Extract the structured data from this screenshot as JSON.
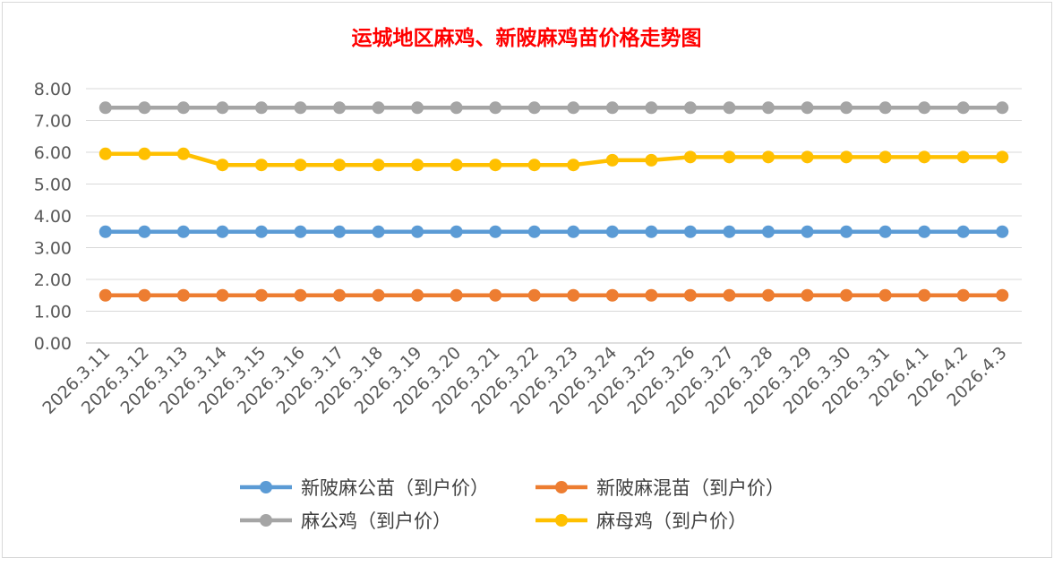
{
  "chart_data": {
    "type": "line",
    "title": "运城地区麻鸡、新陂麻鸡苗价格走势图",
    "title_color": "#ff0000",
    "xlabel": "",
    "ylabel": "",
    "ylim": [
      0,
      8
    ],
    "yticks": [
      "0.00",
      "1.00",
      "2.00",
      "3.00",
      "4.00",
      "5.00",
      "6.00",
      "7.00",
      "8.00"
    ],
    "grid": true,
    "legend_position": "bottom",
    "categories": [
      "2026.3.11",
      "2026.3.12",
      "2026.3.13",
      "2026.3.14",
      "2026.3.15",
      "2026.3.16",
      "2026.3.17",
      "2026.3.18",
      "2026.3.19",
      "2026.3.20",
      "2026.3.21",
      "2026.3.22",
      "2026.3.23",
      "2026.3.24",
      "2026.3.25",
      "2026.3.26",
      "2026.3.27",
      "2026.3.28",
      "2026.3.29",
      "2026.3.30",
      "2026.3.31",
      "2026.4.1",
      "2026.4.2",
      "2026.4.3"
    ],
    "series": [
      {
        "name": "新陂麻公苗（到户价）",
        "color": "#5b9bd5",
        "values": [
          3.5,
          3.5,
          3.5,
          3.5,
          3.5,
          3.5,
          3.5,
          3.5,
          3.5,
          3.5,
          3.5,
          3.5,
          3.5,
          3.5,
          3.5,
          3.5,
          3.5,
          3.5,
          3.5,
          3.5,
          3.5,
          3.5,
          3.5,
          3.5
        ]
      },
      {
        "name": "新陂麻混苗（到户价）",
        "color": "#ed7d31",
        "values": [
          1.5,
          1.5,
          1.5,
          1.5,
          1.5,
          1.5,
          1.5,
          1.5,
          1.5,
          1.5,
          1.5,
          1.5,
          1.5,
          1.5,
          1.5,
          1.5,
          1.5,
          1.5,
          1.5,
          1.5,
          1.5,
          1.5,
          1.5,
          1.5
        ]
      },
      {
        "name": "麻公鸡（到户价）",
        "color": "#a5a5a5",
        "values": [
          7.4,
          7.4,
          7.4,
          7.4,
          7.4,
          7.4,
          7.4,
          7.4,
          7.4,
          7.4,
          7.4,
          7.4,
          7.4,
          7.4,
          7.4,
          7.4,
          7.4,
          7.4,
          7.4,
          7.4,
          7.4,
          7.4,
          7.4,
          7.4
        ]
      },
      {
        "name": "麻母鸡（到户价）",
        "color": "#ffc000",
        "values": [
          5.95,
          5.95,
          5.95,
          5.6,
          5.6,
          5.6,
          5.6,
          5.6,
          5.6,
          5.6,
          5.6,
          5.6,
          5.6,
          5.75,
          5.75,
          5.85,
          5.85,
          5.85,
          5.85,
          5.85,
          5.85,
          5.85,
          5.85,
          5.85
        ]
      }
    ]
  }
}
